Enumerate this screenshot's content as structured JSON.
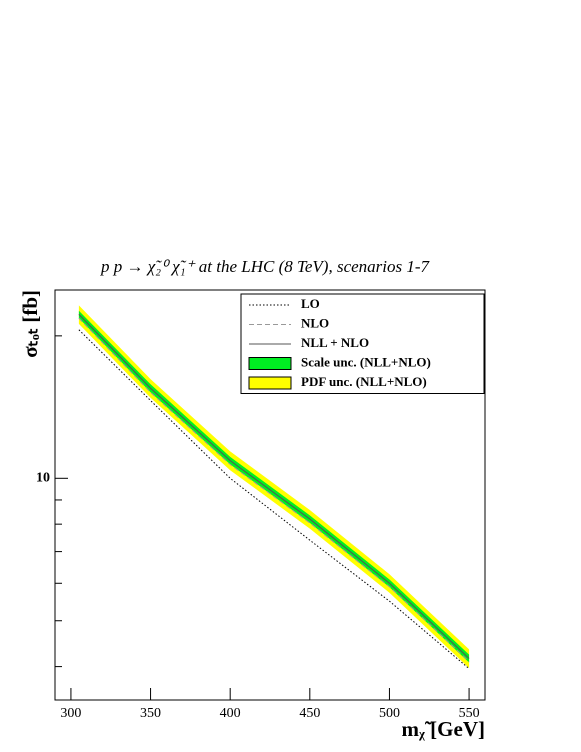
{
  "chart_data": {
    "type": "line",
    "title": "p p → χ̃₂⁰ χ̃₁⁺ at the LHC (8 TeV), scenarios 1-7",
    "x_label": "mᵪ̃ [GeV]",
    "y_label": "σₜₒₜ [fb]",
    "x": [
      305,
      350,
      400,
      450,
      500,
      550
    ],
    "series": [
      {
        "name": "LO",
        "color": "#000000",
        "style": "dotted",
        "values": [
          20.6,
          14.6,
          10.0,
          7.4,
          5.5,
          3.96
        ]
      },
      {
        "name": "NLO",
        "color": "#999999",
        "style": "dashed",
        "values": [
          21.8,
          15.2,
          10.7,
          8.05,
          5.9,
          4.1
        ]
      },
      {
        "name": "NLL + NLO",
        "color": "#555555",
        "style": "solid",
        "values": [
          22.2,
          15.5,
          10.9,
          8.2,
          6.0,
          4.16
        ]
      }
    ],
    "bands": [
      {
        "name": "Scale unc. (NLL+NLO)",
        "color": "#00ee22",
        "lower": [
          21.8,
          15.2,
          10.7,
          8.05,
          5.89,
          4.08
        ],
        "upper": [
          22.6,
          15.8,
          11.1,
          8.35,
          6.11,
          4.24
        ]
      },
      {
        "name": "PDF unc. (NLL+NLO)",
        "color": "#ffff00",
        "lower": [
          21.2,
          14.8,
          10.4,
          7.83,
          5.73,
          3.97
        ],
        "upper": [
          23.2,
          16.2,
          11.4,
          8.57,
          6.27,
          4.35
        ]
      }
    ],
    "xlim": [
      290,
      560
    ],
    "xticks": [
      300,
      350,
      400,
      450,
      500,
      550
    ],
    "ylim": [
      3.4,
      25
    ],
    "yticks": [
      10
    ],
    "log_y": true,
    "legend": "top-right"
  }
}
